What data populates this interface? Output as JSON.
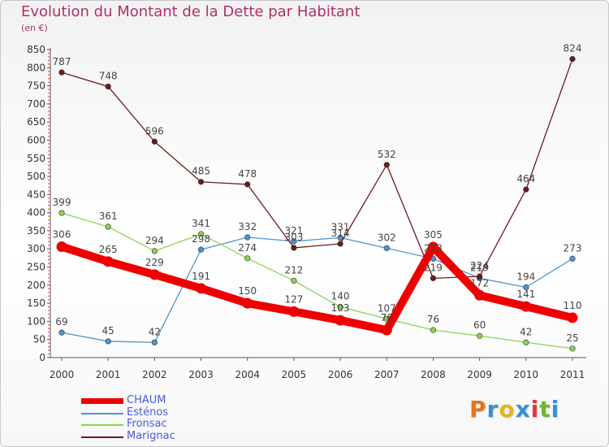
{
  "header": {
    "title": "Evolution du Montant de la Dette par Habitant",
    "subtitle": "(en €)"
  },
  "logo": {
    "letters": [
      "P",
      "r",
      "o",
      "x",
      "i",
      "t",
      "i"
    ],
    "colors": [
      "#e8731a",
      "#3a8fd6",
      "#e8b41a",
      "#3a8fd6",
      "#e03a3a",
      "#6ab82e",
      "#3a8fd6"
    ]
  },
  "chart_data": {
    "type": "line",
    "title": "Evolution du Montant de la Dette par Habitant",
    "subtitle": "(en €)",
    "x": [
      "2000",
      "2001",
      "2002",
      "2003",
      "2004",
      "2005",
      "2006",
      "2007",
      "2008",
      "2009",
      "2010",
      "2011"
    ],
    "ylim": [
      0,
      850
    ],
    "yticks": [
      0,
      50,
      100,
      150,
      200,
      250,
      300,
      350,
      400,
      450,
      500,
      550,
      600,
      650,
      700,
      750,
      800,
      850
    ],
    "grid": false,
    "legend_position": "bottom-left",
    "series": [
      {
        "name": "CHAUM",
        "color": "#ee0000",
        "emphasis": true,
        "values": [
          306,
          265,
          229,
          191,
          150,
          127,
          103,
          76,
          305,
          172,
          141,
          110
        ]
      },
      {
        "name": "Esténos",
        "color": "#4f94cd",
        "emphasis": false,
        "values": [
          69,
          45,
          42,
          298,
          332,
          321,
          331,
          302,
          273,
          219,
          194,
          273
        ]
      },
      {
        "name": "Fronsac",
        "color": "#8fd14f",
        "emphasis": false,
        "values": [
          399,
          361,
          294,
          341,
          274,
          212,
          140,
          107,
          76,
          60,
          42,
          25
        ]
      },
      {
        "name": "Marignac",
        "color": "#6b1a1a",
        "emphasis": false,
        "values": [
          787,
          748,
          596,
          485,
          478,
          303,
          314,
          532,
          219,
          224,
          464,
          824
        ]
      }
    ],
    "data_labels": [
      {
        "series": "CHAUM",
        "values": [
          "306",
          "265",
          "229",
          "191",
          "150",
          "127",
          "103",
          "76",
          "305",
          "172",
          "141",
          "110"
        ]
      },
      {
        "series": "Esténos",
        "values": [
          "69",
          "45",
          "42",
          "298",
          "332",
          "321",
          "331",
          "302",
          "273",
          "219",
          "194",
          "273"
        ]
      },
      {
        "series": "Fronsac",
        "values": [
          "399",
          "361",
          "294",
          "341",
          "274",
          "212",
          "140",
          "107",
          "76",
          "60",
          "42",
          "25"
        ]
      },
      {
        "series": "Marignac",
        "values": [
          "787",
          "748",
          "596",
          "485",
          "478",
          "303",
          "314",
          "532",
          "219",
          "224",
          "464",
          "824"
        ]
      }
    ]
  }
}
